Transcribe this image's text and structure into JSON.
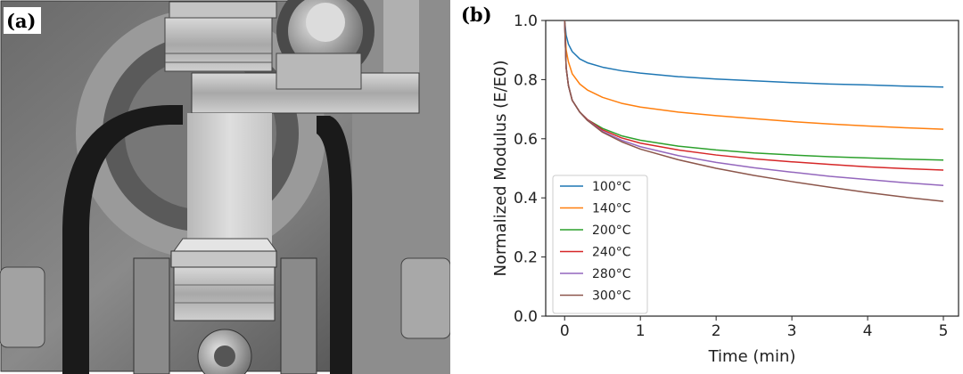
{
  "panels": {
    "a_label": "(a)",
    "b_label": "(b)"
  },
  "photo": {
    "description_icon": "tensile-test-fixture-photo"
  },
  "chart_data": {
    "type": "line",
    "xlabel": "Time (min)",
    "ylabel": "Normalized Modulus (E/E0)",
    "xlim": [
      -0.25,
      5.2
    ],
    "ylim": [
      0.0,
      1.0
    ],
    "xticks": [
      0,
      1,
      2,
      3,
      4,
      5
    ],
    "yticks": [
      0.0,
      0.2,
      0.4,
      0.6,
      0.8,
      1.0
    ],
    "ytick_labels": [
      "0.0",
      "0.2",
      "0.4",
      "0.6",
      "0.8",
      "1.0"
    ],
    "legend_position": "lower-left",
    "grid": false,
    "series": [
      {
        "name": "100°C",
        "color": "#1f77b4",
        "x": [
          0,
          0.02,
          0.05,
          0.1,
          0.2,
          0.3,
          0.5,
          0.75,
          1,
          1.5,
          2,
          2.5,
          3,
          3.5,
          4,
          4.5,
          5
        ],
        "y": [
          1.0,
          0.95,
          0.92,
          0.895,
          0.87,
          0.857,
          0.842,
          0.83,
          0.822,
          0.81,
          0.802,
          0.796,
          0.79,
          0.785,
          0.782,
          0.778,
          0.775
        ]
      },
      {
        "name": "140°C",
        "color": "#ff7f0e",
        "x": [
          0,
          0.02,
          0.05,
          0.1,
          0.2,
          0.3,
          0.5,
          0.75,
          1,
          1.5,
          2,
          2.5,
          3,
          3.5,
          4,
          4.5,
          5
        ],
        "y": [
          1.0,
          0.9,
          0.86,
          0.82,
          0.785,
          0.765,
          0.74,
          0.72,
          0.707,
          0.69,
          0.678,
          0.668,
          0.658,
          0.65,
          0.643,
          0.637,
          0.632
        ]
      },
      {
        "name": "200°C",
        "color": "#2ca02c",
        "x": [
          0,
          0.02,
          0.05,
          0.1,
          0.2,
          0.3,
          0.5,
          0.75,
          1,
          1.5,
          2,
          2.5,
          3,
          3.5,
          4,
          4.5,
          5
        ],
        "y": [
          1.0,
          0.84,
          0.78,
          0.73,
          0.69,
          0.665,
          0.635,
          0.61,
          0.595,
          0.575,
          0.562,
          0.552,
          0.545,
          0.539,
          0.535,
          0.531,
          0.528
        ]
      },
      {
        "name": "240°C",
        "color": "#d62728",
        "x": [
          0,
          0.02,
          0.05,
          0.1,
          0.2,
          0.3,
          0.5,
          0.75,
          1,
          1.5,
          2,
          2.5,
          3,
          3.5,
          4,
          4.5,
          5
        ],
        "y": [
          1.0,
          0.84,
          0.78,
          0.73,
          0.69,
          0.665,
          0.63,
          0.603,
          0.585,
          0.562,
          0.545,
          0.532,
          0.522,
          0.513,
          0.505,
          0.499,
          0.494
        ]
      },
      {
        "name": "280°C",
        "color": "#9467bd",
        "x": [
          0,
          0.02,
          0.05,
          0.1,
          0.2,
          0.3,
          0.5,
          0.75,
          1,
          1.5,
          2,
          2.5,
          3,
          3.5,
          4,
          4.5,
          5
        ],
        "y": [
          1.0,
          0.84,
          0.78,
          0.73,
          0.69,
          0.663,
          0.625,
          0.595,
          0.573,
          0.543,
          0.52,
          0.502,
          0.487,
          0.473,
          0.462,
          0.451,
          0.442
        ]
      },
      {
        "name": "300°C",
        "color": "#8c564b",
        "x": [
          0,
          0.02,
          0.05,
          0.1,
          0.2,
          0.3,
          0.5,
          0.75,
          1,
          1.5,
          2,
          2.5,
          3,
          3.5,
          4,
          4.5,
          5
        ],
        "y": [
          1.0,
          0.84,
          0.78,
          0.73,
          0.69,
          0.662,
          0.622,
          0.59,
          0.565,
          0.529,
          0.5,
          0.476,
          0.455,
          0.436,
          0.418,
          0.402,
          0.388
        ]
      }
    ]
  }
}
